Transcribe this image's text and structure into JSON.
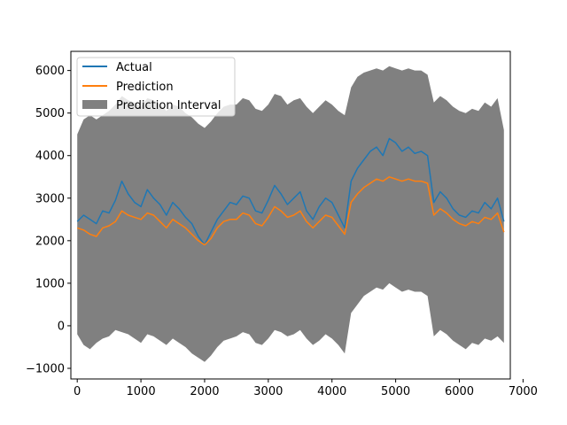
{
  "chart_data": {
    "type": "line",
    "title": "",
    "xlabel": "",
    "ylabel": "",
    "xlim": [
      -100,
      6800
    ],
    "ylim": [
      -1250,
      6450
    ],
    "xticks": [
      0,
      1000,
      2000,
      3000,
      4000,
      5000,
      6000,
      7000
    ],
    "xtick_labels": [
      "0",
      "1000",
      "2000",
      "3000",
      "4000",
      "5000",
      "6000",
      "7000"
    ],
    "yticks": [
      -1000,
      0,
      1000,
      2000,
      3000,
      4000,
      5000,
      6000
    ],
    "ytick_labels": [
      "−1000",
      "0",
      "1000",
      "2000",
      "3000",
      "4000",
      "5000",
      "6000"
    ],
    "grid": false,
    "legend_position": "upper-left",
    "series": [
      {
        "name": "Actual",
        "color": "#1f77b4",
        "x": [
          0,
          100,
          200,
          300,
          400,
          500,
          600,
          700,
          800,
          900,
          1000,
          1100,
          1200,
          1300,
          1400,
          1500,
          1600,
          1700,
          1800,
          1900,
          2000,
          2100,
          2200,
          2300,
          2400,
          2500,
          2600,
          2700,
          2800,
          2900,
          3000,
          3100,
          3200,
          3300,
          3400,
          3500,
          3600,
          3700,
          3800,
          3900,
          4000,
          4100,
          4200,
          4300,
          4400,
          4500,
          4600,
          4700,
          4800,
          4900,
          5000,
          5100,
          5200,
          5300,
          5400,
          5500,
          5600,
          5700,
          5800,
          5900,
          6000,
          6100,
          6200,
          6300,
          6400,
          6500,
          6600,
          6700
        ],
        "y": [
          2450,
          2600,
          2500,
          2400,
          2700,
          2650,
          2950,
          3400,
          3100,
          2900,
          2800,
          3200,
          3000,
          2850,
          2600,
          2900,
          2750,
          2550,
          2400,
          2100,
          1900,
          2200,
          2500,
          2700,
          2900,
          2850,
          3050,
          3000,
          2700,
          2650,
          2950,
          3300,
          3100,
          2850,
          3000,
          3150,
          2700,
          2500,
          2800,
          3000,
          2900,
          2600,
          2300,
          3400,
          3700,
          3900,
          4100,
          4200,
          4000,
          4400,
          4300,
          4100,
          4200,
          4050,
          4100,
          4000,
          2900,
          3150,
          3000,
          2750,
          2600,
          2550,
          2700,
          2650,
          2900,
          2750,
          3000,
          2450
        ]
      },
      {
        "name": "Prediction",
        "color": "#ff7f0e",
        "x": [
          0,
          100,
          200,
          300,
          400,
          500,
          600,
          700,
          800,
          900,
          1000,
          1100,
          1200,
          1300,
          1400,
          1500,
          1600,
          1700,
          1800,
          1900,
          2000,
          2100,
          2200,
          2300,
          2400,
          2500,
          2600,
          2700,
          2800,
          2900,
          3000,
          3100,
          3200,
          3300,
          3400,
          3500,
          3600,
          3700,
          3800,
          3900,
          4000,
          4100,
          4200,
          4300,
          4400,
          4500,
          4600,
          4700,
          4800,
          4900,
          5000,
          5100,
          5200,
          5300,
          5400,
          5500,
          5600,
          5700,
          5800,
          5900,
          6000,
          6100,
          6200,
          6300,
          6400,
          6500,
          6600,
          6700
        ],
        "y": [
          2300,
          2250,
          2150,
          2100,
          2300,
          2350,
          2450,
          2700,
          2600,
          2550,
          2500,
          2650,
          2600,
          2450,
          2300,
          2500,
          2400,
          2300,
          2150,
          2000,
          1900,
          2050,
          2300,
          2450,
          2500,
          2500,
          2650,
          2600,
          2400,
          2350,
          2550,
          2800,
          2700,
          2550,
          2600,
          2700,
          2450,
          2300,
          2450,
          2600,
          2550,
          2350,
          2150,
          2900,
          3100,
          3250,
          3350,
          3450,
          3400,
          3500,
          3450,
          3400,
          3450,
          3400,
          3400,
          3350,
          2600,
          2750,
          2650,
          2500,
          2400,
          2350,
          2450,
          2400,
          2550,
          2500,
          2650,
          2200
        ]
      }
    ],
    "band": {
      "name": "Prediction Interval",
      "color": "#808080",
      "x": [
        0,
        100,
        200,
        300,
        400,
        500,
        600,
        700,
        800,
        900,
        1000,
        1100,
        1200,
        1300,
        1400,
        1500,
        1600,
        1700,
        1800,
        1900,
        2000,
        2100,
        2200,
        2300,
        2400,
        2500,
        2600,
        2700,
        2800,
        2900,
        3000,
        3100,
        3200,
        3300,
        3400,
        3500,
        3600,
        3700,
        3800,
        3900,
        4000,
        4100,
        4200,
        4300,
        4400,
        4500,
        4600,
        4700,
        4800,
        4900,
        5000,
        5100,
        5200,
        5300,
        5400,
        5500,
        5600,
        5700,
        5800,
        5900,
        6000,
        6100,
        6200,
        6300,
        6400,
        6500,
        6600,
        6700
      ],
      "lower": [
        -200,
        -450,
        -550,
        -400,
        -300,
        -250,
        -100,
        -150,
        -200,
        -300,
        -400,
        -200,
        -250,
        -350,
        -450,
        -300,
        -400,
        -500,
        -650,
        -750,
        -850,
        -700,
        -500,
        -350,
        -300,
        -250,
        -150,
        -200,
        -400,
        -450,
        -300,
        -100,
        -150,
        -250,
        -200,
        -100,
        -300,
        -450,
        -350,
        -200,
        -300,
        -450,
        -650,
        300,
        500,
        700,
        800,
        900,
        850,
        1000,
        900,
        800,
        850,
        800,
        800,
        700,
        -250,
        -100,
        -200,
        -350,
        -450,
        -550,
        -400,
        -450,
        -300,
        -350,
        -250,
        -400
      ],
      "upper": [
        4500,
        4850,
        4950,
        4850,
        4950,
        5050,
        5200,
        5400,
        5300,
        5250,
        5150,
        5350,
        5300,
        5200,
        5050,
        5200,
        5150,
        5000,
        4900,
        4750,
        4650,
        4800,
        5000,
        5150,
        5200,
        5200,
        5350,
        5300,
        5100,
        5050,
        5200,
        5450,
        5400,
        5200,
        5300,
        5350,
        5150,
        5000,
        5150,
        5300,
        5200,
        5050,
        4950,
        5600,
        5850,
        5950,
        6000,
        6050,
        6000,
        6100,
        6050,
        6000,
        6050,
        6000,
        6000,
        5900,
        5250,
        5400,
        5300,
        5150,
        5050,
        5000,
        5100,
        5050,
        5250,
        5150,
        5350,
        4600
      ]
    }
  }
}
